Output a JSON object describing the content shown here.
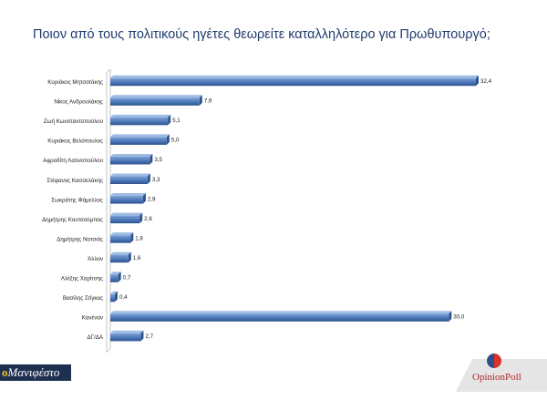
{
  "title": "Ποιον από τους πολιτικούς ηγέτες θεωρείτε καταλληλότερο για Πρωθυπουργό;",
  "colors": {
    "bar": "#4a77b8",
    "bar_dark": "#2d528c",
    "title": "#1f3b6e"
  },
  "brand_left": {
    "mark": "ο",
    "text": "Μανιφέστο"
  },
  "brand_right": {
    "text": "OpinionPoll"
  },
  "chart_data": {
    "type": "bar",
    "orientation": "horizontal",
    "title": "Ποιον από τους πολιτικούς ηγέτες θεωρείτε καταλληλότερο για Πρωθυπουργό;",
    "categories": [
      "Κυριάκος Μητσοτάκης",
      "Νίκος Ανδρουλάκης",
      "Ζωή Κωνσταντοπούλου",
      "Κυριάκος Βελόπουλος",
      "Αφροδίτη Λατινοπούλου",
      "Στέφανος Κασσελάκης",
      "Σωκράτης Φάμελλος",
      "Δημήτρης Κουτσούμπας",
      "Δημήτρης Νατσιός",
      "Άλλον",
      "Αλέξης Χαρίτσης",
      "Βασίλης Στίγκας",
      "Κανέναν",
      "ΔΓ/ΔΑ"
    ],
    "values": [
      32.4,
      7.9,
      5.1,
      5.0,
      3.5,
      3.3,
      2.9,
      2.6,
      1.8,
      1.6,
      0.7,
      0.4,
      30.0,
      2.7
    ],
    "value_labels": [
      "32,4",
      "7,9",
      "5,1",
      "5,0",
      "3,5",
      "3,3",
      "2,9",
      "2,6",
      "1,8",
      "1,6",
      "0,7",
      "0,4",
      "30,0",
      "2,7"
    ],
    "xlim": [
      0,
      32.4
    ],
    "grid": false,
    "legend": "none"
  }
}
